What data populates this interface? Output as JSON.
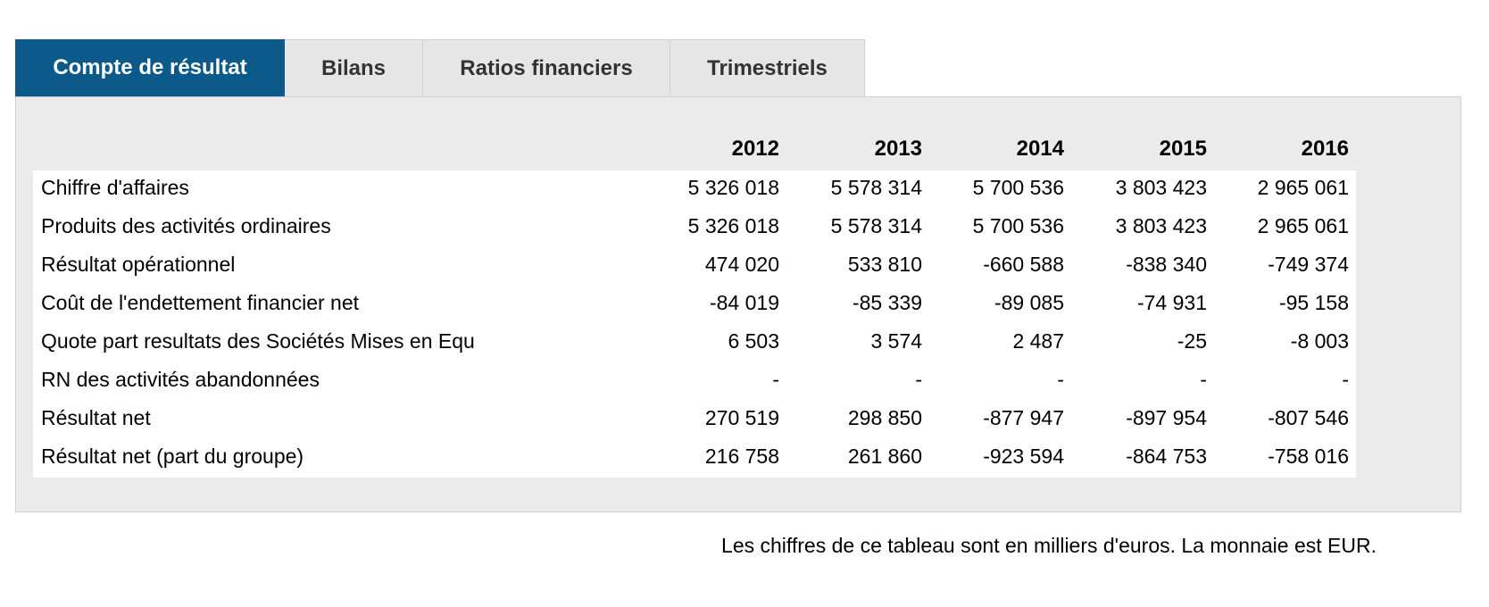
{
  "tabs": [
    {
      "label": "Compte de résultat",
      "active": true
    },
    {
      "label": "Bilans",
      "active": false
    },
    {
      "label": "Ratios financiers",
      "active": false
    },
    {
      "label": "Trimestriels",
      "active": false
    }
  ],
  "table": {
    "years": [
      "2012",
      "2013",
      "2014",
      "2015",
      "2016"
    ],
    "rows": [
      {
        "label": "Chiffre d'affaires",
        "values": [
          "5 326 018",
          "5 578 314",
          "5 700 536",
          "3 803 423",
          "2 965 061"
        ]
      },
      {
        "label": "Produits des activités ordinaires",
        "values": [
          "5 326 018",
          "5 578 314",
          "5 700 536",
          "3 803 423",
          "2 965 061"
        ]
      },
      {
        "label": "Résultat opérationnel",
        "values": [
          "474 020",
          "533 810",
          "-660 588",
          "-838 340",
          "-749 374"
        ]
      },
      {
        "label": "Coût de l'endettement financier net",
        "values": [
          "-84 019",
          "-85 339",
          "-89 085",
          "-74 931",
          "-95 158"
        ]
      },
      {
        "label": "Quote part resultats des Sociétés Mises en Equ",
        "values": [
          "6 503",
          "3 574",
          "2 487",
          "-25",
          "-8 003"
        ]
      },
      {
        "label": "RN des activités abandonnées",
        "values": [
          "-",
          "-",
          "-",
          "-",
          "-"
        ]
      },
      {
        "label": "Résultat net",
        "values": [
          "270 519",
          "298 850",
          "-877 947",
          "-897 954",
          "-807 546"
        ]
      },
      {
        "label": "Résultat net (part du groupe)",
        "values": [
          "216 758",
          "261 860",
          "-923 594",
          "-864 753",
          "-758 016"
        ]
      }
    ]
  },
  "footnote": "Les chiffres de ce tableau sont en milliers d'euros. La monnaie est EUR.",
  "colors": {
    "active_tab": "#0b5a8a",
    "tab_bg": "#e6e6e6",
    "panel_bg": "#ebebeb"
  }
}
